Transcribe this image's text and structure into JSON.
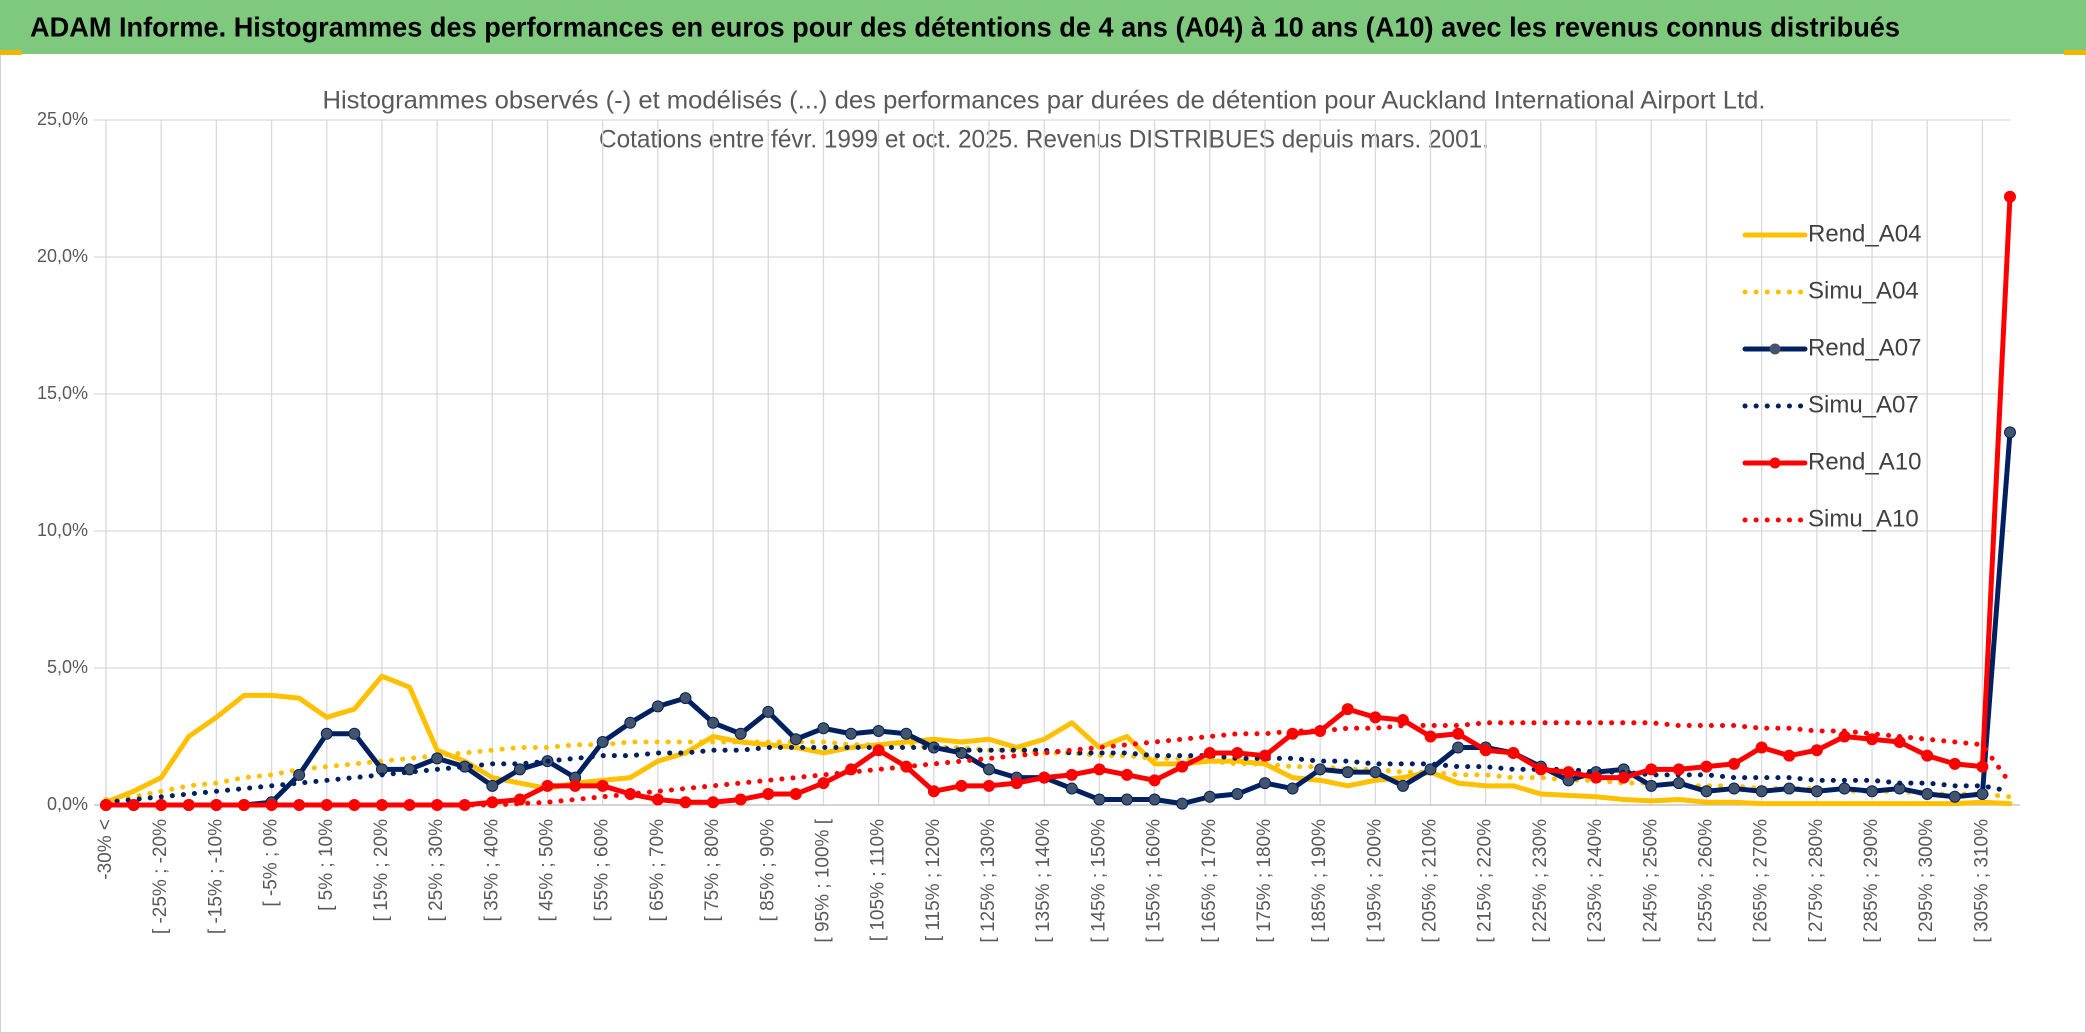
{
  "header": {
    "title": "ADAM Informe. Histogrammes des performances en euros pour des détentions de 4 ans (A04) à 10 ans (A10) avec les revenus connus distribués"
  },
  "chart_data": {
    "type": "line",
    "title": "Histogrammes observés (-) et modélisés (...) des performances par durées de détention pour Auckland International Airport Ltd.",
    "subtitle": "Cotations entre févr. 1999 et oct. 2025. Revenus DISTRIBUES depuis mars. 2001.",
    "categories": [
      "-30% <",
      null,
      "[ -25% ; -20%",
      null,
      "[ -15% ; -10%",
      null,
      "[ -5% ; 0%",
      null,
      "[ 5% ; 10%",
      null,
      "[ 15% ; 20%",
      null,
      "[ 25% ; 30%",
      null,
      "[ 35% ; 40%",
      null,
      "[ 45% ; 50%",
      null,
      "[ 55% ; 60%",
      null,
      "[ 65% ; 70%",
      null,
      "[ 75% ; 80%",
      null,
      "[ 85% ; 90%",
      null,
      "[ 95% ; 100% [",
      null,
      "[ 105% ; 110%",
      null,
      "[ 115% ; 120%",
      null,
      "[ 125% ; 130%",
      null,
      "[ 135% ; 140%",
      null,
      "[ 145% ; 150%",
      null,
      "[ 155% ; 160%",
      null,
      "[ 165% ; 170%",
      null,
      "[ 175% ; 180%",
      null,
      "[ 185% ; 190%",
      null,
      "[ 195% ; 200%",
      null,
      "[ 205% ; 210%",
      null,
      "[ 215% ; 220%",
      null,
      "[ 225% ; 230%",
      null,
      "[ 235% ; 240%",
      null,
      "[ 245% ; 250%",
      null,
      "[ 255% ; 260%",
      null,
      "[ 265% ; 270%",
      null,
      "[ 275% ; 280%",
      null,
      "[ 285% ; 290%",
      null,
      "[ 295% ; 300%",
      null,
      "[ 305% ; 310%",
      null
    ],
    "series": [
      {
        "name": "Rend_A04",
        "color": "#FFC000",
        "style": "solid",
        "marker": false,
        "values": [
          0.1,
          0.5,
          1.0,
          2.5,
          3.2,
          4.0,
          4.0,
          3.9,
          3.2,
          3.5,
          4.7,
          4.3,
          2.0,
          1.6,
          1.0,
          0.8,
          0.6,
          0.8,
          0.9,
          1.0,
          1.6,
          1.9,
          2.5,
          2.3,
          2.2,
          2.1,
          1.9,
          2.1,
          2.2,
          2.3,
          2.4,
          2.3,
          2.4,
          2.1,
          2.4,
          3.0,
          2.1,
          2.5,
          1.5,
          1.5,
          1.6,
          1.6,
          1.5,
          1.0,
          0.9,
          0.7,
          0.9,
          1.0,
          1.2,
          0.8,
          0.7,
          0.7,
          0.4,
          0.35,
          0.3,
          0.2,
          0.15,
          0.2,
          0.1,
          0.1,
          0.05,
          0.05,
          0.05,
          0.05,
          0.05,
          0.05,
          0.05,
          0.05,
          0.1,
          0.05
        ]
      },
      {
        "name": "Simu_A04",
        "color": "#FFC000",
        "style": "dotted",
        "marker": false,
        "values": [
          0.2,
          0.3,
          0.5,
          0.7,
          0.8,
          1.0,
          1.1,
          1.3,
          1.4,
          1.5,
          1.6,
          1.7,
          1.8,
          1.9,
          2.0,
          2.1,
          2.1,
          2.2,
          2.2,
          2.3,
          2.3,
          2.3,
          2.3,
          2.3,
          2.3,
          2.3,
          2.3,
          2.2,
          2.2,
          2.2,
          2.1,
          2.1,
          2.0,
          2.0,
          1.9,
          1.9,
          1.8,
          1.8,
          1.7,
          1.7,
          1.6,
          1.5,
          1.5,
          1.4,
          1.4,
          1.3,
          1.3,
          1.2,
          1.2,
          1.1,
          1.1,
          1.0,
          1.0,
          0.9,
          0.9,
          0.8,
          0.8,
          0.7,
          0.7,
          0.7,
          0.6,
          0.6,
          0.6,
          0.5,
          0.5,
          0.5,
          0.4,
          0.4,
          0.4,
          0.3
        ]
      },
      {
        "name": "Rend_A07",
        "color": "#002060",
        "style": "solid",
        "marker": true,
        "values": [
          0,
          0,
          0,
          0,
          0,
          0,
          0.1,
          1.1,
          2.6,
          2.6,
          1.3,
          1.3,
          1.7,
          1.4,
          0.7,
          1.3,
          1.6,
          1.0,
          2.3,
          3.0,
          3.6,
          3.9,
          3.0,
          2.6,
          3.4,
          2.4,
          2.8,
          2.6,
          2.7,
          2.6,
          2.1,
          1.9,
          1.3,
          1.0,
          1.0,
          0.6,
          0.2,
          0.2,
          0.2,
          0.05,
          0.3,
          0.4,
          0.8,
          0.6,
          1.3,
          1.2,
          1.2,
          0.7,
          1.3,
          2.1,
          2.1,
          1.9,
          1.4,
          0.9,
          1.2,
          1.3,
          0.7,
          0.8,
          0.5,
          0.6,
          0.5,
          0.6,
          0.5,
          0.6,
          0.5,
          0.6,
          0.4,
          0.3,
          0.4,
          13.6
        ]
      },
      {
        "name": "Simu_A07",
        "color": "#002060",
        "style": "dotted",
        "marker": false,
        "values": [
          0.1,
          0.2,
          0.3,
          0.4,
          0.5,
          0.6,
          0.7,
          0.8,
          0.9,
          1.0,
          1.1,
          1.2,
          1.3,
          1.4,
          1.5,
          1.5,
          1.6,
          1.7,
          1.8,
          1.8,
          1.9,
          1.9,
          2.0,
          2.0,
          2.1,
          2.1,
          2.1,
          2.1,
          2.1,
          2.1,
          2.1,
          2.0,
          2.0,
          2.0,
          2.0,
          1.9,
          1.9,
          1.9,
          1.8,
          1.8,
          1.8,
          1.7,
          1.7,
          1.7,
          1.6,
          1.6,
          1.5,
          1.5,
          1.5,
          1.4,
          1.4,
          1.3,
          1.3,
          1.3,
          1.2,
          1.2,
          1.1,
          1.1,
          1.1,
          1.0,
          1.0,
          1.0,
          0.9,
          0.9,
          0.9,
          0.8,
          0.8,
          0.7,
          0.7,
          0.5
        ]
      },
      {
        "name": "Rend_A10",
        "color": "#FF0000",
        "style": "solid",
        "marker": true,
        "values": [
          0,
          0,
          0,
          0,
          0,
          0,
          0,
          0,
          0,
          0,
          0,
          0,
          0,
          0,
          0.1,
          0.2,
          0.7,
          0.7,
          0.7,
          0.4,
          0.2,
          0.1,
          0.1,
          0.2,
          0.4,
          0.4,
          0.8,
          1.3,
          2.0,
          1.4,
          0.5,
          0.7,
          0.7,
          0.8,
          1.0,
          1.1,
          1.3,
          1.1,
          0.9,
          1.4,
          1.9,
          1.9,
          1.8,
          2.6,
          2.7,
          3.5,
          3.2,
          3.1,
          2.5,
          2.6,
          2.0,
          1.9,
          1.3,
          1.2,
          1.0,
          1.0,
          1.3,
          1.3,
          1.4,
          1.5,
          2.1,
          1.8,
          2.0,
          2.5,
          2.4,
          2.3,
          1.8,
          1.5,
          1.4,
          22.2
        ]
      },
      {
        "name": "Simu_A10",
        "color": "#FF0000",
        "style": "dotted",
        "marker": false,
        "values": [
          0,
          0,
          0,
          0,
          0,
          0,
          0,
          0,
          0,
          0,
          0,
          0,
          0,
          0,
          0,
          0.05,
          0.1,
          0.2,
          0.3,
          0.4,
          0.5,
          0.6,
          0.7,
          0.8,
          0.9,
          1.0,
          1.1,
          1.2,
          1.3,
          1.4,
          1.5,
          1.6,
          1.7,
          1.8,
          1.9,
          2.0,
          2.1,
          2.2,
          2.3,
          2.4,
          2.5,
          2.6,
          2.6,
          2.7,
          2.7,
          2.8,
          2.8,
          2.9,
          2.9,
          2.9,
          3.0,
          3.0,
          3.0,
          3.0,
          3.0,
          3.0,
          3.0,
          2.9,
          2.9,
          2.9,
          2.8,
          2.8,
          2.7,
          2.7,
          2.6,
          2.5,
          2.4,
          2.3,
          2.2,
          0.8
        ]
      }
    ],
    "ylim": [
      0,
      25
    ],
    "yticks": [
      {
        "value": 0,
        "label": "0,0%"
      },
      {
        "value": 5,
        "label": "5,0%"
      },
      {
        "value": 10,
        "label": "10,0%"
      },
      {
        "value": 15,
        "label": "15,0%"
      },
      {
        "value": 20,
        "label": "20,0%"
      },
      {
        "value": 25,
        "label": "25,0%"
      }
    ],
    "grid": true,
    "legend": "right"
  }
}
